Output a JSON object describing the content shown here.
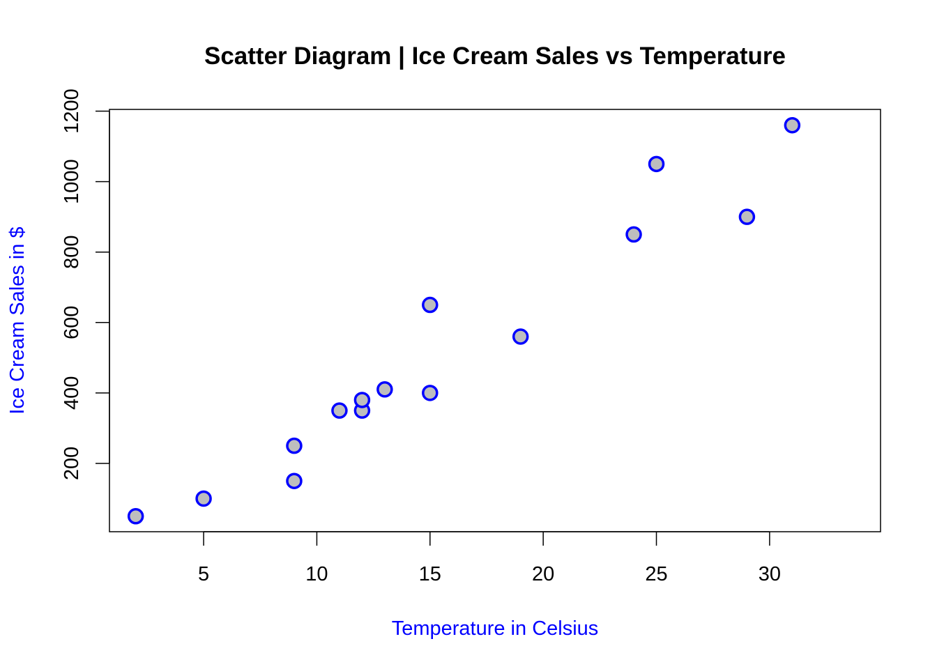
{
  "chart_data": {
    "type": "scatter",
    "title": "Scatter Diagram | Ice Cream Sales vs Temperature",
    "xlabel": "Temperature in Celsius",
    "ylabel": "Ice Cream Sales in $",
    "xlim": [
      0.84,
      34.9
    ],
    "ylim": [
      6,
      1205
    ],
    "xticks": [
      5,
      10,
      15,
      20,
      25,
      30
    ],
    "yticks": [
      200,
      400,
      600,
      800,
      1000,
      1200
    ],
    "grid": false,
    "label_color": "#0000FF",
    "point_stroke": "#0000FF",
    "point_fill": "#BEBEBE",
    "points": [
      {
        "x": 2,
        "y": 50
      },
      {
        "x": 5,
        "y": 100
      },
      {
        "x": 9,
        "y": 150
      },
      {
        "x": 9,
        "y": 250
      },
      {
        "x": 11,
        "y": 350
      },
      {
        "x": 12,
        "y": 350
      },
      {
        "x": 12,
        "y": 380
      },
      {
        "x": 13,
        "y": 410
      },
      {
        "x": 15,
        "y": 400
      },
      {
        "x": 15,
        "y": 650
      },
      {
        "x": 19,
        "y": 560
      },
      {
        "x": 24,
        "y": 850
      },
      {
        "x": 25,
        "y": 1050
      },
      {
        "x": 29,
        "y": 900
      },
      {
        "x": 31,
        "y": 1160
      }
    ]
  }
}
